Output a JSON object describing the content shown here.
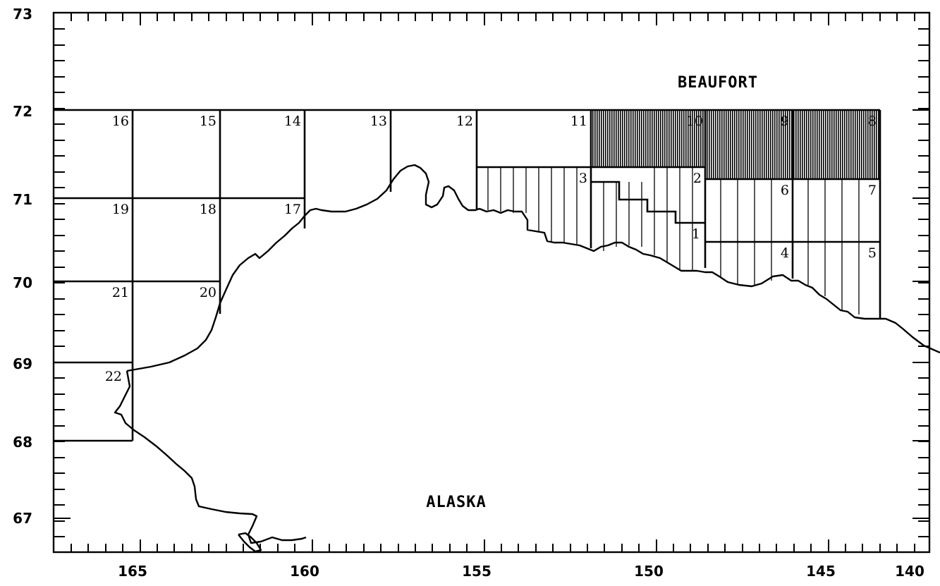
{
  "map": {
    "region_labels": {
      "sea": "BEAUFORT",
      "land": "ALASKA"
    },
    "x_ticks": [
      "165",
      "160",
      "155",
      "150",
      "145",
      "140"
    ],
    "y_ticks": [
      "73",
      "72",
      "71",
      "70",
      "69",
      "68",
      "67"
    ],
    "blocks": [
      "1",
      "2",
      "3",
      "4",
      "5",
      "6",
      "7",
      "8",
      "9",
      "10",
      "11",
      "12",
      "13",
      "14",
      "15",
      "16",
      "17",
      "18",
      "19",
      "20",
      "21",
      "22"
    ],
    "shaded_blocks": [
      "8",
      "9",
      "10"
    ],
    "hatched_blocks": [
      "1",
      "2",
      "3",
      "4",
      "5",
      "6",
      "7"
    ],
    "colors": {
      "line": "#000000",
      "background": "#ffffff"
    }
  }
}
